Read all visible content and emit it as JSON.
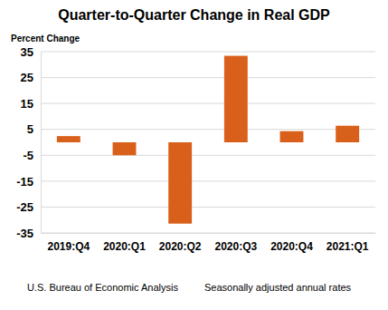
{
  "chart_data": {
    "type": "bar",
    "title": "Quarter-to-Quarter Change in Real GDP",
    "y_label": "Percent Change",
    "source": "U.S. Bureau of Economic Analysis",
    "note": "Seasonally adjusted annual rates",
    "categories": [
      "2019:Q4",
      "2020:Q1",
      "2020:Q2",
      "2020:Q3",
      "2020:Q4",
      "2021:Q1"
    ],
    "values": [
      2.4,
      -5.0,
      -31.4,
      33.4,
      4.3,
      6.4
    ],
    "color": "#d9601a",
    "ylim": [
      -35,
      35
    ],
    "yticks": [
      35,
      25,
      15,
      5,
      -5,
      -15,
      -25,
      -35
    ],
    "grid": true
  }
}
